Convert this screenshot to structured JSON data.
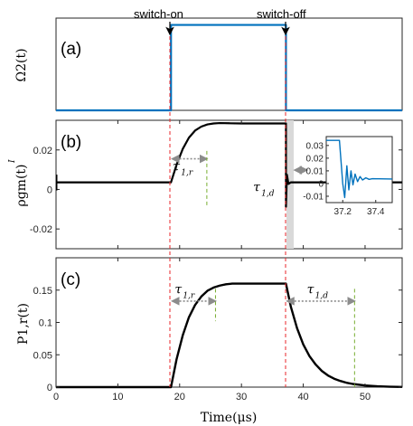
{
  "chart_data": [
    {
      "panel": "(a)",
      "type": "line",
      "ylabel": "Ω2(t)",
      "xlim": [
        0,
        56
      ],
      "ylim": [
        0,
        1.08
      ],
      "y_ticks_shown": false,
      "series": [
        {
          "color": "#0072BD",
          "x": [
            0,
            18.6,
            18.6,
            37.2,
            37.2,
            56
          ],
          "y": [
            0,
            0,
            1,
            1,
            0,
            0
          ]
        }
      ],
      "annotations": [
        {
          "text": "switch-on",
          "x": 18.6
        },
        {
          "text": "switch-off",
          "x": 37.2
        }
      ]
    },
    {
      "panel": "(b)",
      "type": "line",
      "ylabel": "ρgm(t)",
      "ylabel_superscript": "I",
      "xlim": [
        0,
        56
      ],
      "ylim": [
        -0.03,
        0.035
      ],
      "y_ticks": [
        -0.02,
        0,
        0.02
      ],
      "y_tick_labels": [
        "-0.02",
        "0",
        "0.02"
      ],
      "series": [
        {
          "color": "#000000",
          "x": [
            0,
            18.6,
            19.5,
            20.5,
            21.5,
            22.5,
            23.5,
            24.5,
            25.5,
            26.5,
            28,
            30,
            33,
            37.2,
            37.2,
            37.35,
            37.6,
            38,
            56
          ],
          "y": [
            0.0036,
            0.0036,
            0.0125,
            0.0205,
            0.0262,
            0.0298,
            0.0318,
            0.0329,
            0.0334,
            0.0336,
            0.0335,
            0.0334,
            0.0334,
            0.0334,
            -0.0088,
            0.0075,
            0.0028,
            0.0036,
            0.0036
          ]
        }
      ],
      "annotations": [
        {
          "symbol": "τ",
          "sub": "1,r",
          "x": 18.6
        },
        {
          "symbol": "τ",
          "sub": "1,d",
          "x": 37.2
        }
      ],
      "inset": {
        "xlim": [
          37.1,
          37.5
        ],
        "ylim": [
          -0.015,
          0.037
        ],
        "x_ticks": [
          37.2,
          37.4
        ],
        "x_tick_labels": [
          "37.2",
          "37.4"
        ],
        "y_ticks": [
          -0.01,
          0,
          0.01,
          0.02,
          0.03
        ],
        "y_tick_labels": [
          "-0.01",
          "0",
          "0.01",
          "0.02",
          "0.03"
        ],
        "series": [
          {
            "color": "#0072BD",
            "x": [
              37.1,
              37.18,
              37.2,
              37.212,
              37.225,
              37.237,
              37.25,
              37.262,
              37.275,
              37.29,
              37.305,
              37.32,
              37.34,
              37.36,
              37.38,
              37.5
            ],
            "y": [
              0.034,
              0.034,
              0.0,
              -0.011,
              0.014,
              -0.005,
              0.01,
              -0.001,
              0.0075,
              0.0015,
              0.0055,
              0.0028,
              0.0045,
              0.0033,
              0.0038,
              0.0036
            ]
          }
        ]
      }
    },
    {
      "panel": "(c)",
      "type": "line",
      "ylabel": "P1,r(t)",
      "xlabel": "Time(μs)",
      "xlim": [
        0,
        56
      ],
      "ylim": [
        0,
        0.2
      ],
      "x_ticks": [
        0,
        10,
        20,
        30,
        40,
        50
      ],
      "x_tick_labels": [
        "0",
        "10",
        "20",
        "30",
        "40",
        "50"
      ],
      "y_ticks": [
        0,
        0.05,
        0.1,
        0.15
      ],
      "y_tick_labels": [
        "0",
        "0.05",
        "0.1",
        "0.15"
      ],
      "series": [
        {
          "color": "#000000",
          "x": [
            0,
            18.6,
            19.5,
            20.5,
            21.5,
            22.5,
            23.5,
            24.5,
            25.5,
            26.5,
            27.5,
            28.5,
            29.5,
            37.2,
            38,
            39,
            40,
            41,
            42,
            43,
            44,
            45,
            46,
            47,
            48,
            50,
            52,
            54,
            56
          ],
          "y": [
            0,
            0,
            0.043,
            0.08,
            0.108,
            0.127,
            0.14,
            0.149,
            0.154,
            0.157,
            0.159,
            0.16,
            0.16,
            0.16,
            0.124,
            0.091,
            0.066,
            0.048,
            0.035,
            0.025,
            0.018,
            0.013,
            0.0095,
            0.0068,
            0.0049,
            0.0025,
            0.0013,
            0.0006,
            0.0003
          ]
        }
      ],
      "annotations": [
        {
          "symbol": "τ",
          "sub": "1,r",
          "x": 18.6
        },
        {
          "symbol": "τ",
          "sub": "1,d",
          "x": 37.2
        }
      ]
    }
  ]
}
